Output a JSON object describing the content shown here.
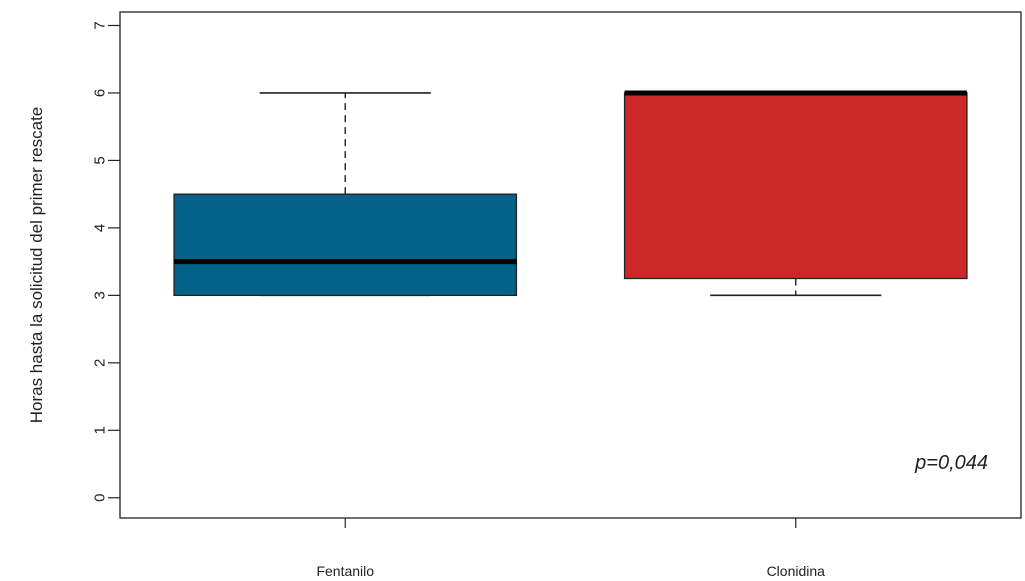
{
  "chart_data": {
    "type": "box",
    "title": "",
    "xlabel": "",
    "ylabel": "Horas hasta la solicitud del primer rescate",
    "ylim": [
      -0.3,
      7.2
    ],
    "yticks": [
      0,
      1,
      2,
      3,
      4,
      5,
      6,
      7
    ],
    "categories": [
      "Fentanilo",
      "Clonidina"
    ],
    "boxes": [
      {
        "category": "Fentanilo",
        "whisker_low": 3,
        "q1": 3,
        "median": 3.5,
        "q3": 4.5,
        "whisker_high": 6,
        "color": "#036287"
      },
      {
        "category": "Clonidina",
        "whisker_low": 3,
        "q1": 3.25,
        "median": 6,
        "q3": 6,
        "whisker_high": 6,
        "color": "#cc2828"
      }
    ],
    "annotation": "p=0,044",
    "grid": false,
    "legend": "none"
  }
}
